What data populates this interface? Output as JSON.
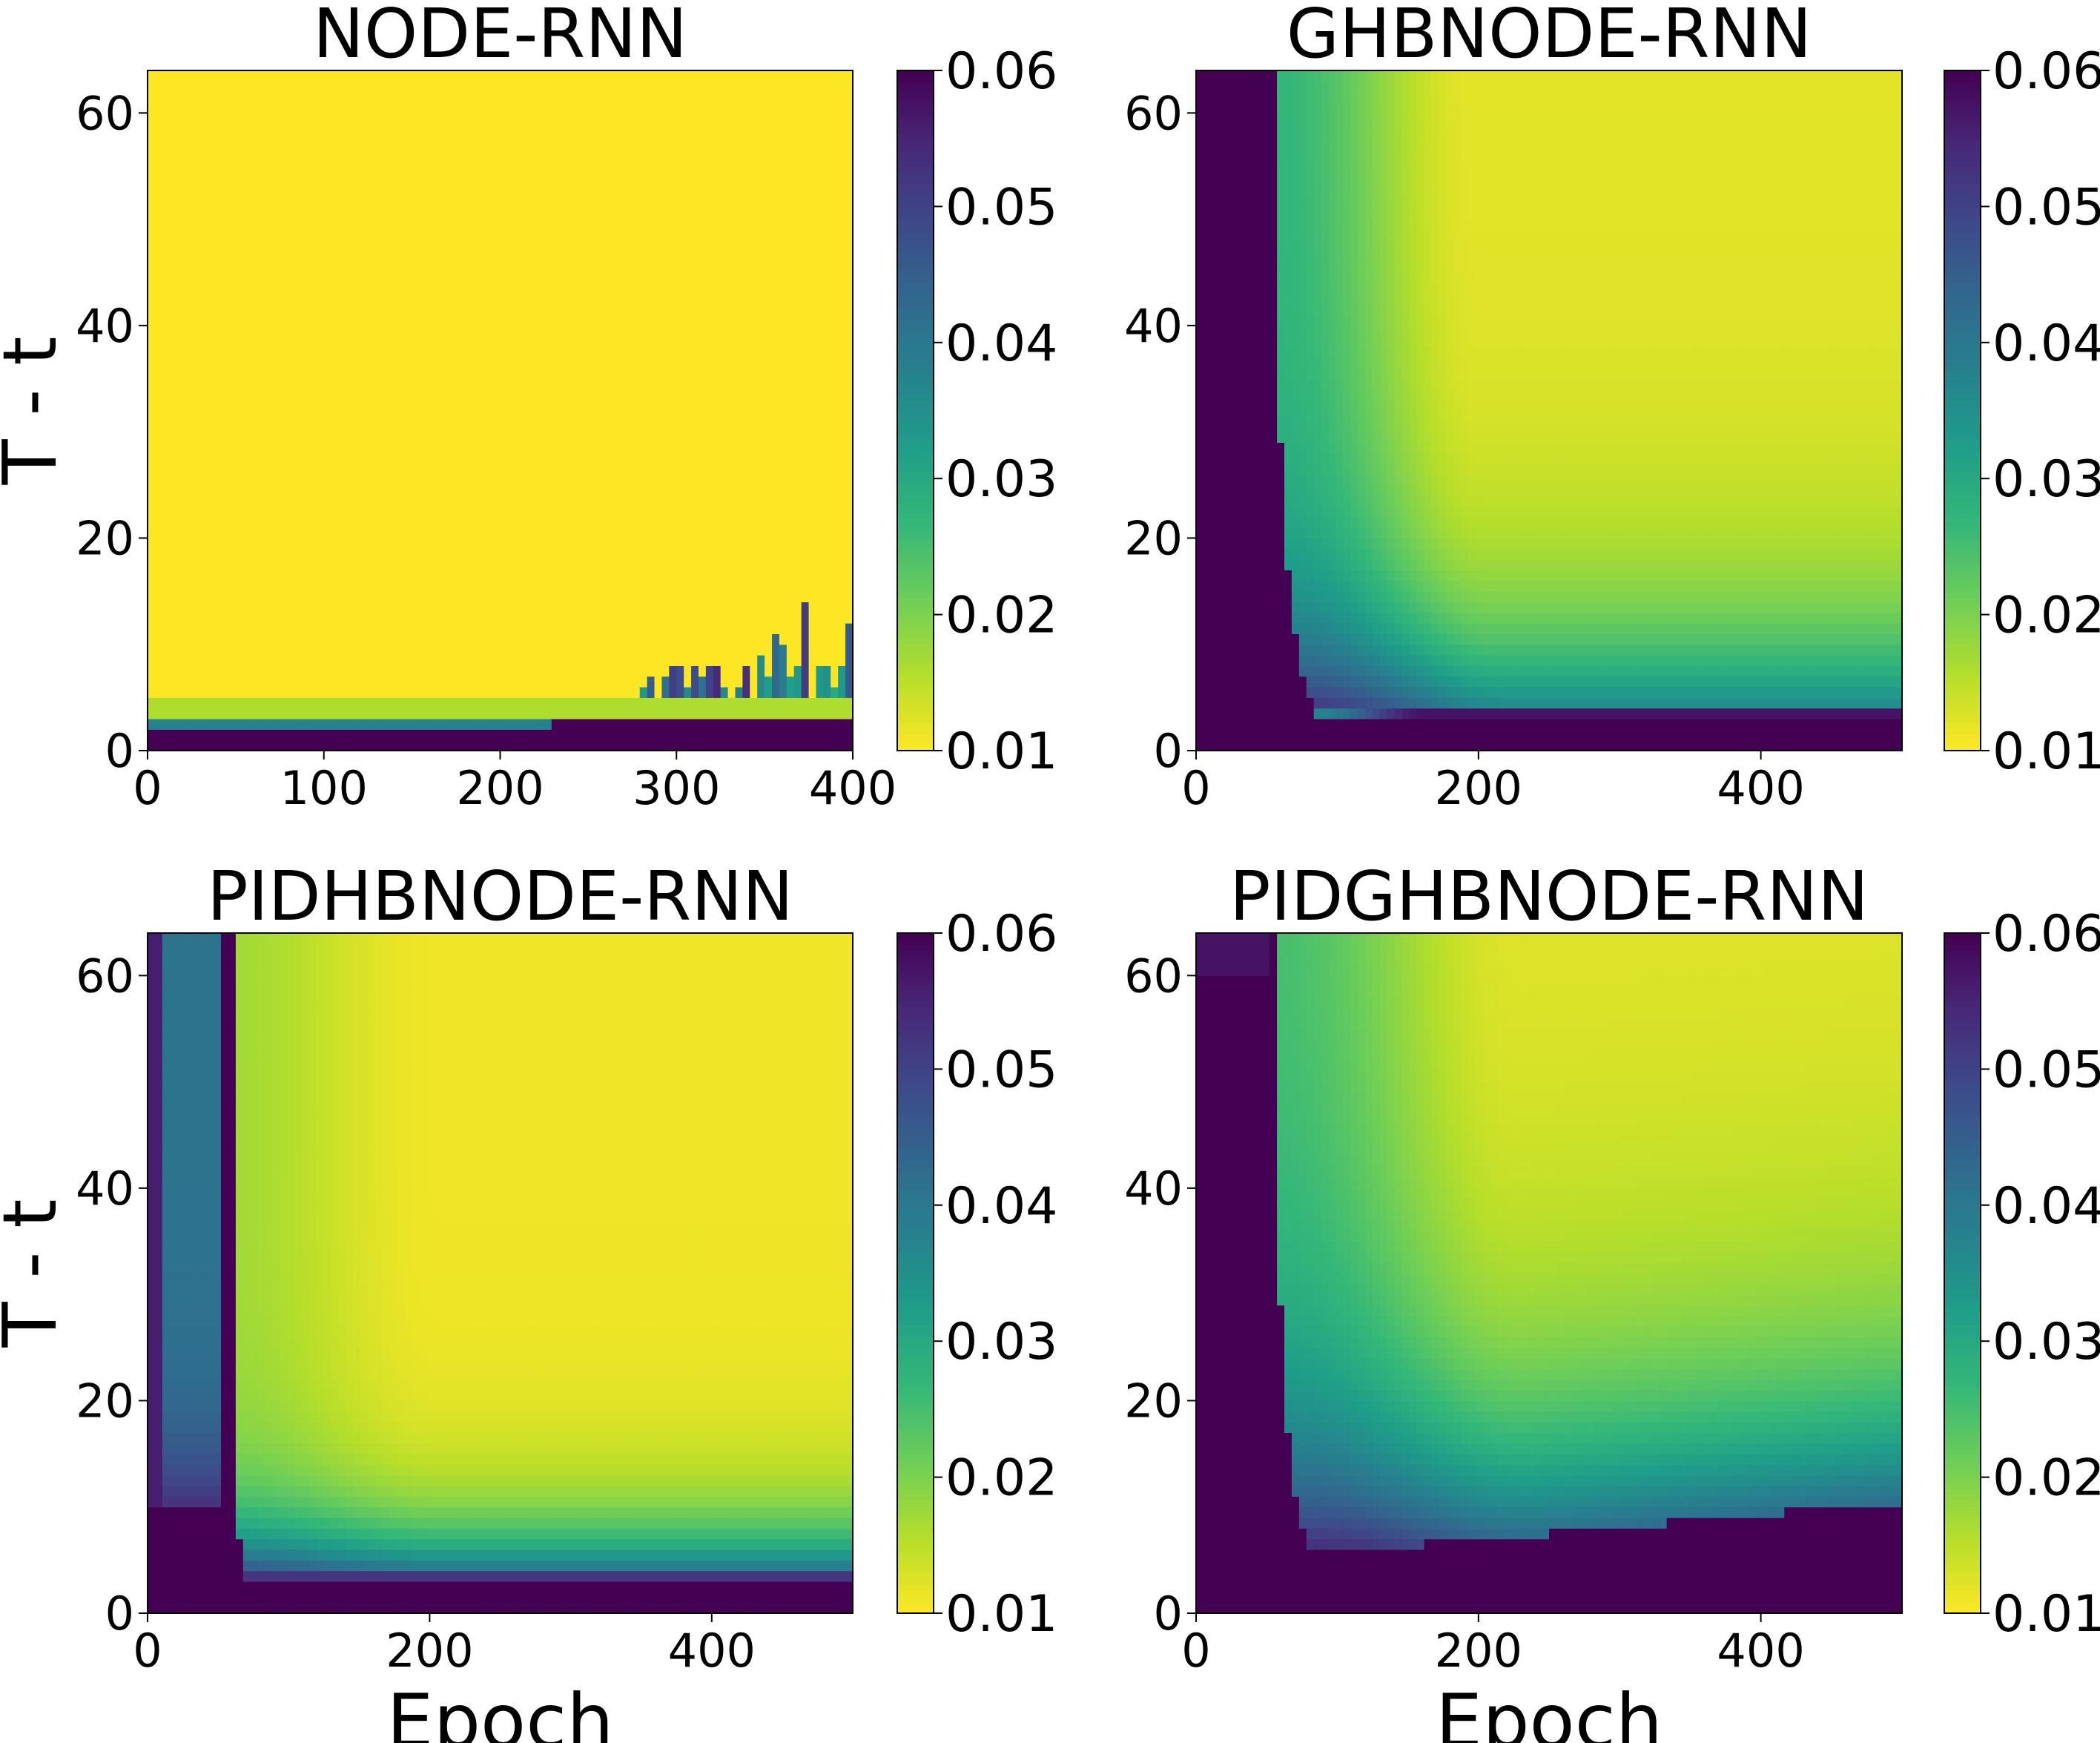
{
  "colormap": {
    "name": "viridis",
    "reversed": true,
    "stops": [
      "#fde725",
      "#b5de2b",
      "#6ece58",
      "#35b779",
      "#1f9e89",
      "#26828e",
      "#31688e",
      "#3e4989",
      "#482878",
      "#440154"
    ]
  },
  "chart_data": [
    {
      "type": "heatmap",
      "title": "NODE-RNN",
      "xlabel": "",
      "ylabel": "T - t",
      "xlim": [
        0,
        400
      ],
      "ylim": [
        0,
        64
      ],
      "xticks": [
        0,
        100,
        200,
        300,
        400
      ],
      "yticks": [
        0,
        20,
        40,
        60
      ],
      "colorbar": {
        "range": [
          0.01,
          0.06
        ],
        "ticks": [
          "0.01",
          "0.02",
          "0.03",
          "0.04",
          "0.05",
          "0.06"
        ]
      },
      "model": "node"
    },
    {
      "type": "heatmap",
      "title": "GHBNODE-RNN",
      "xlabel": "",
      "ylabel": "",
      "xlim": [
        0,
        500
      ],
      "ylim": [
        0,
        64
      ],
      "xticks": [
        0,
        200,
        400
      ],
      "yticks": [
        0,
        20,
        40,
        60
      ],
      "colorbar": {
        "range": [
          0.01,
          0.06
        ],
        "ticks": [
          "0.01",
          "0.02",
          "0.03",
          "0.04",
          "0.05",
          "0.06"
        ]
      },
      "model": "ghbnode"
    },
    {
      "type": "heatmap",
      "title": "PIDHBNODE-RNN",
      "xlabel": "Epoch",
      "ylabel": "T - t",
      "xlim": [
        0,
        500
      ],
      "ylim": [
        0,
        64
      ],
      "xticks": [
        0,
        200,
        400
      ],
      "yticks": [
        0,
        20,
        40,
        60
      ],
      "colorbar": {
        "range": [
          0.01,
          0.06
        ],
        "ticks": [
          "0.01",
          "0.02",
          "0.03",
          "0.04",
          "0.05",
          "0.06"
        ]
      },
      "model": "pidhbnode"
    },
    {
      "type": "heatmap",
      "title": "PIDGHBNODE-RNN",
      "xlabel": "Epoch",
      "ylabel": "",
      "xlim": [
        0,
        500
      ],
      "ylim": [
        0,
        64
      ],
      "xticks": [
        0,
        200,
        400
      ],
      "yticks": [
        0,
        20,
        40,
        60
      ],
      "colorbar": {
        "range": [
          0.01,
          0.06
        ],
        "ticks": [
          "0.01",
          "0.02",
          "0.03",
          "0.04",
          "0.05",
          "0.06"
        ]
      },
      "model": "pidghbnode"
    }
  ]
}
